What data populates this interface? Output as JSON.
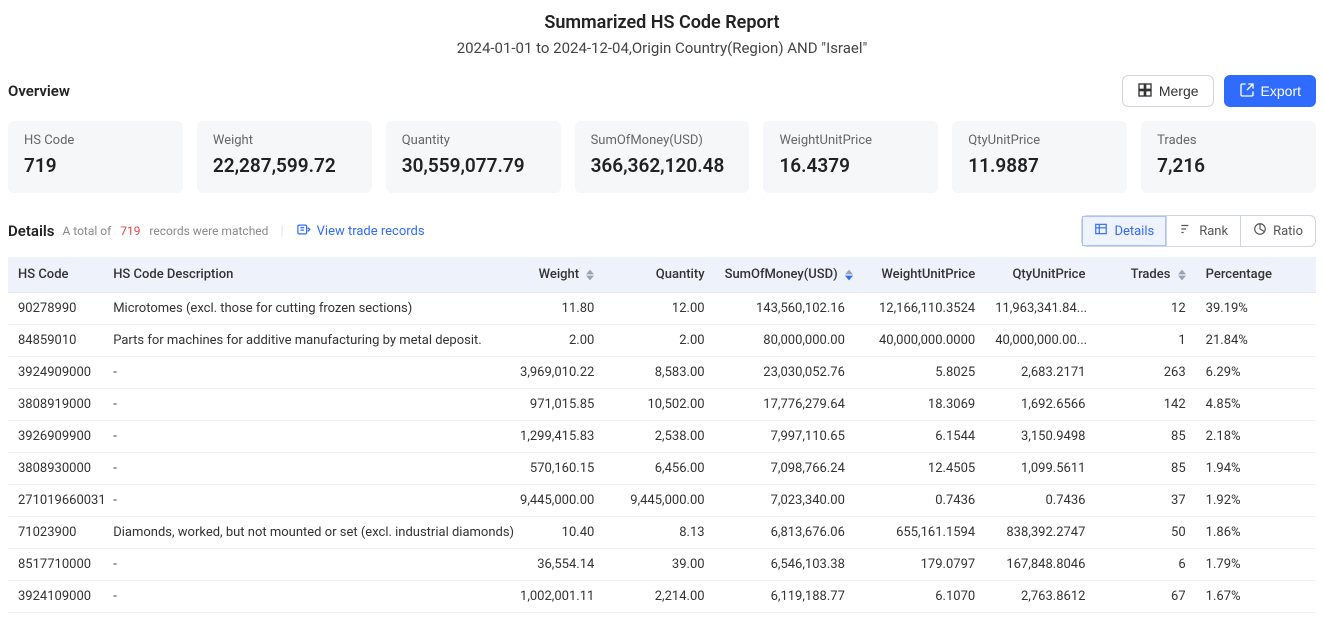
{
  "header": {
    "title": "Summarized HS Code Report",
    "subtitle": "2024-01-01 to 2024-12-04,Origin Country(Region) AND \"Israel\""
  },
  "overview": {
    "label": "Overview",
    "merge_label": "Merge",
    "export_label": "Export",
    "cards": [
      {
        "label": "HS Code",
        "value": "719"
      },
      {
        "label": "Weight",
        "value": "22,287,599.72"
      },
      {
        "label": "Quantity",
        "value": "30,559,077.79"
      },
      {
        "label": "SumOfMoney(USD)",
        "value": "366,362,120.48"
      },
      {
        "label": "WeightUnitPrice",
        "value": "16.4379"
      },
      {
        "label": "QtyUnitPrice",
        "value": "11.9887"
      },
      {
        "label": "Trades",
        "value": "7,216"
      }
    ]
  },
  "details": {
    "label": "Details",
    "total_prefix": "A total of",
    "total_count": "719",
    "total_suffix": "records were matched",
    "view_link": "View trade records",
    "tabs": {
      "details": "Details",
      "rank": "Rank",
      "ratio": "Ratio"
    }
  },
  "table": {
    "columns": {
      "hscode": "HS Code",
      "desc": "HS Code Description",
      "weight": "Weight",
      "qty": "Quantity",
      "sum": "SumOfMoney(USD)",
      "wup": "WeightUnitPrice",
      "qup": "QtyUnitPrice",
      "trades": "Trades",
      "pct": "Percentage"
    },
    "rows": [
      {
        "hscode": "90278990",
        "desc": "Microtomes (excl. those for cutting frozen sections)",
        "weight": "11.80",
        "qty": "12.00",
        "sum": "143,560,102.16",
        "wup": "12,166,110.3524",
        "qup": "11,963,341.84...",
        "trades": "12",
        "pct": "39.19%"
      },
      {
        "hscode": "84859010",
        "desc": "Parts for machines for additive manufacturing by metal deposit.",
        "weight": "2.00",
        "qty": "2.00",
        "sum": "80,000,000.00",
        "wup": "40,000,000.0000",
        "qup": "40,000,000.00...",
        "trades": "1",
        "pct": "21.84%"
      },
      {
        "hscode": "3924909000",
        "desc": "-",
        "weight": "3,969,010.22",
        "qty": "8,583.00",
        "sum": "23,030,052.76",
        "wup": "5.8025",
        "qup": "2,683.2171",
        "trades": "263",
        "pct": "6.29%"
      },
      {
        "hscode": "3808919000",
        "desc": "-",
        "weight": "971,015.85",
        "qty": "10,502.00",
        "sum": "17,776,279.64",
        "wup": "18.3069",
        "qup": "1,692.6566",
        "trades": "142",
        "pct": "4.85%"
      },
      {
        "hscode": "3926909900",
        "desc": "-",
        "weight": "1,299,415.83",
        "qty": "2,538.00",
        "sum": "7,997,110.65",
        "wup": "6.1544",
        "qup": "3,150.9498",
        "trades": "85",
        "pct": "2.18%"
      },
      {
        "hscode": "3808930000",
        "desc": "-",
        "weight": "570,160.15",
        "qty": "6,456.00",
        "sum": "7,098,766.24",
        "wup": "12.4505",
        "qup": "1,099.5611",
        "trades": "85",
        "pct": "1.94%"
      },
      {
        "hscode": "271019660031",
        "desc": "-",
        "weight": "9,445,000.00",
        "qty": "9,445,000.00",
        "sum": "7,023,340.00",
        "wup": "0.7436",
        "qup": "0.7436",
        "trades": "37",
        "pct": "1.92%"
      },
      {
        "hscode": "71023900",
        "desc": "Diamonds, worked, but not mounted or set (excl. industrial diamonds)",
        "weight": "10.40",
        "qty": "8.13",
        "sum": "6,813,676.06",
        "wup": "655,161.1594",
        "qup": "838,392.2747",
        "trades": "50",
        "pct": "1.86%"
      },
      {
        "hscode": "8517710000",
        "desc": "-",
        "weight": "36,554.14",
        "qty": "39.00",
        "sum": "6,546,103.38",
        "wup": "179.0797",
        "qup": "167,848.8046",
        "trades": "6",
        "pct": "1.79%"
      },
      {
        "hscode": "3924109000",
        "desc": "-",
        "weight": "1,002,001.11",
        "qty": "2,214.00",
        "sum": "6,119,188.77",
        "wup": "6.1070",
        "qup": "2,763.8612",
        "trades": "67",
        "pct": "1.67%"
      }
    ]
  },
  "colors": {
    "primary": "#2f6bff",
    "danger": "#e64545",
    "card_bg": "#f6f7f9",
    "thead_bg": "#eef3fb",
    "border": "#d0d5dd"
  }
}
